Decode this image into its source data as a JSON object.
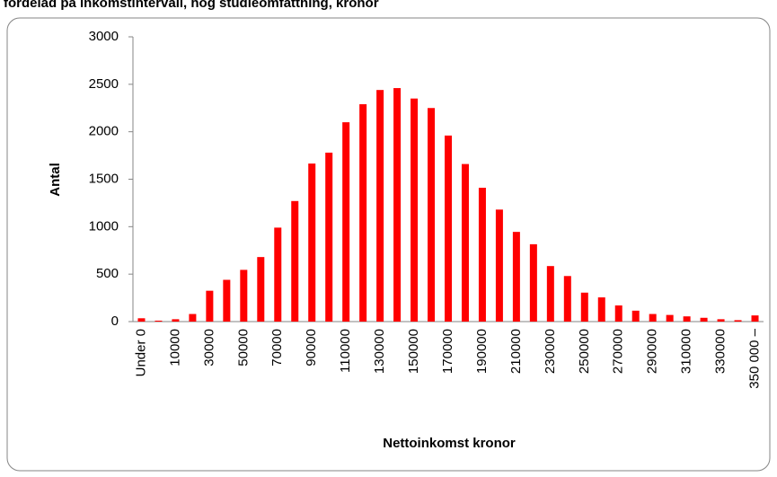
{
  "chart_data": {
    "type": "bar",
    "title": "fördelad på inkomstintervall, hög studieomfattning, kronor",
    "x_label": "Nettoinkomst kronor",
    "y_label": "Antal",
    "categories": [
      "Under 0",
      null,
      "10000",
      null,
      "30000",
      null,
      "50000",
      null,
      "70000",
      null,
      "90000",
      null,
      "110000",
      null,
      "130000",
      null,
      "150000",
      null,
      "170000",
      null,
      "190000",
      null,
      "210000",
      null,
      "230000",
      null,
      "250000",
      null,
      "270000",
      null,
      "290000",
      null,
      "310000",
      null,
      "330000",
      null,
      "350 000 –"
    ],
    "values": [
      35,
      10,
      25,
      80,
      325,
      440,
      545,
      680,
      990,
      1270,
      1665,
      1780,
      2100,
      2290,
      2440,
      2460,
      2350,
      2250,
      1960,
      1660,
      1410,
      1180,
      945,
      815,
      585,
      480,
      305,
      255,
      170,
      115,
      80,
      70,
      55,
      40,
      25,
      15,
      65
    ],
    "color": "#ff0000",
    "ylim": [
      0,
      3000
    ],
    "yticks": [
      0,
      500,
      1000,
      1500,
      2000,
      2500,
      3000
    ],
    "grid": false
  }
}
